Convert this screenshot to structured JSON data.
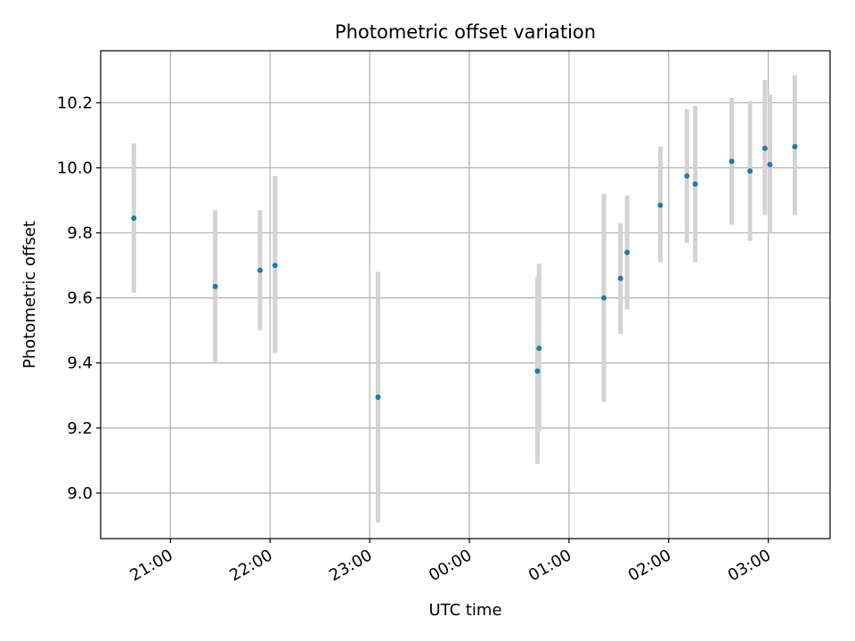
{
  "chart_data": {
    "type": "scatter",
    "title": "Photometric offset variation",
    "xlabel": "UTC time",
    "ylabel": "Photometric offset",
    "grid": true,
    "x_start": "20:18",
    "x_end": "03:37",
    "xlim": [
      -0.7,
      6.62
    ],
    "ylim": [
      8.86,
      10.36
    ],
    "x_ticks": [
      {
        "label": "21:00",
        "value": 0
      },
      {
        "label": "22:00",
        "value": 1
      },
      {
        "label": "23:00",
        "value": 2
      },
      {
        "label": "00:00",
        "value": 3
      },
      {
        "label": "01:00",
        "value": 4
      },
      {
        "label": "02:00",
        "value": 5
      },
      {
        "label": "03:00",
        "value": 6
      }
    ],
    "y_ticks": [
      {
        "label": "9.0",
        "value": 9.0
      },
      {
        "label": "9.2",
        "value": 9.2
      },
      {
        "label": "9.4",
        "value": 9.4
      },
      {
        "label": "9.6",
        "value": 9.6
      },
      {
        "label": "9.8",
        "value": 9.8
      },
      {
        "label": "10.0",
        "value": 10.0
      },
      {
        "label": "10.2",
        "value": 10.2
      }
    ],
    "points": [
      {
        "time": "20:38",
        "y": 9.845,
        "low": 9.615,
        "high": 10.075
      },
      {
        "time": "21:27",
        "y": 9.635,
        "low": 9.4,
        "high": 9.87
      },
      {
        "time": "21:54",
        "y": 9.685,
        "low": 9.5,
        "high": 9.87
      },
      {
        "time": "22:03",
        "y": 9.7,
        "low": 9.43,
        "high": 9.975
      },
      {
        "time": "23:05",
        "y": 9.295,
        "low": 8.91,
        "high": 9.68
      },
      {
        "time": "00:41",
        "y": 9.375,
        "low": 9.09,
        "high": 9.665
      },
      {
        "time": "00:42",
        "y": 9.445,
        "low": 9.19,
        "high": 9.705
      },
      {
        "time": "01:21",
        "y": 9.6,
        "low": 9.28,
        "high": 9.92
      },
      {
        "time": "01:31",
        "y": 9.66,
        "low": 9.49,
        "high": 9.83
      },
      {
        "time": "01:35",
        "y": 9.74,
        "low": 9.565,
        "high": 9.915
      },
      {
        "time": "01:55",
        "y": 9.885,
        "low": 9.71,
        "high": 10.065
      },
      {
        "time": "02:11",
        "y": 9.975,
        "low": 9.77,
        "high": 10.18
      },
      {
        "time": "02:16",
        "y": 9.95,
        "low": 9.71,
        "high": 10.19
      },
      {
        "time": "02:38",
        "y": 10.02,
        "low": 9.825,
        "high": 10.215
      },
      {
        "time": "02:49",
        "y": 9.99,
        "low": 9.775,
        "high": 10.205
      },
      {
        "time": "02:58",
        "y": 10.06,
        "low": 9.855,
        "high": 10.27
      },
      {
        "time": "03:01",
        "y": 10.01,
        "low": 9.8,
        "high": 10.225
      },
      {
        "time": "03:16",
        "y": 10.065,
        "low": 9.855,
        "high": 10.285
      }
    ],
    "colors": {
      "point": "#1f77b4",
      "errorbar": "#d3d3d3",
      "grid": "#b0b0b0",
      "axis": "#000000"
    }
  }
}
